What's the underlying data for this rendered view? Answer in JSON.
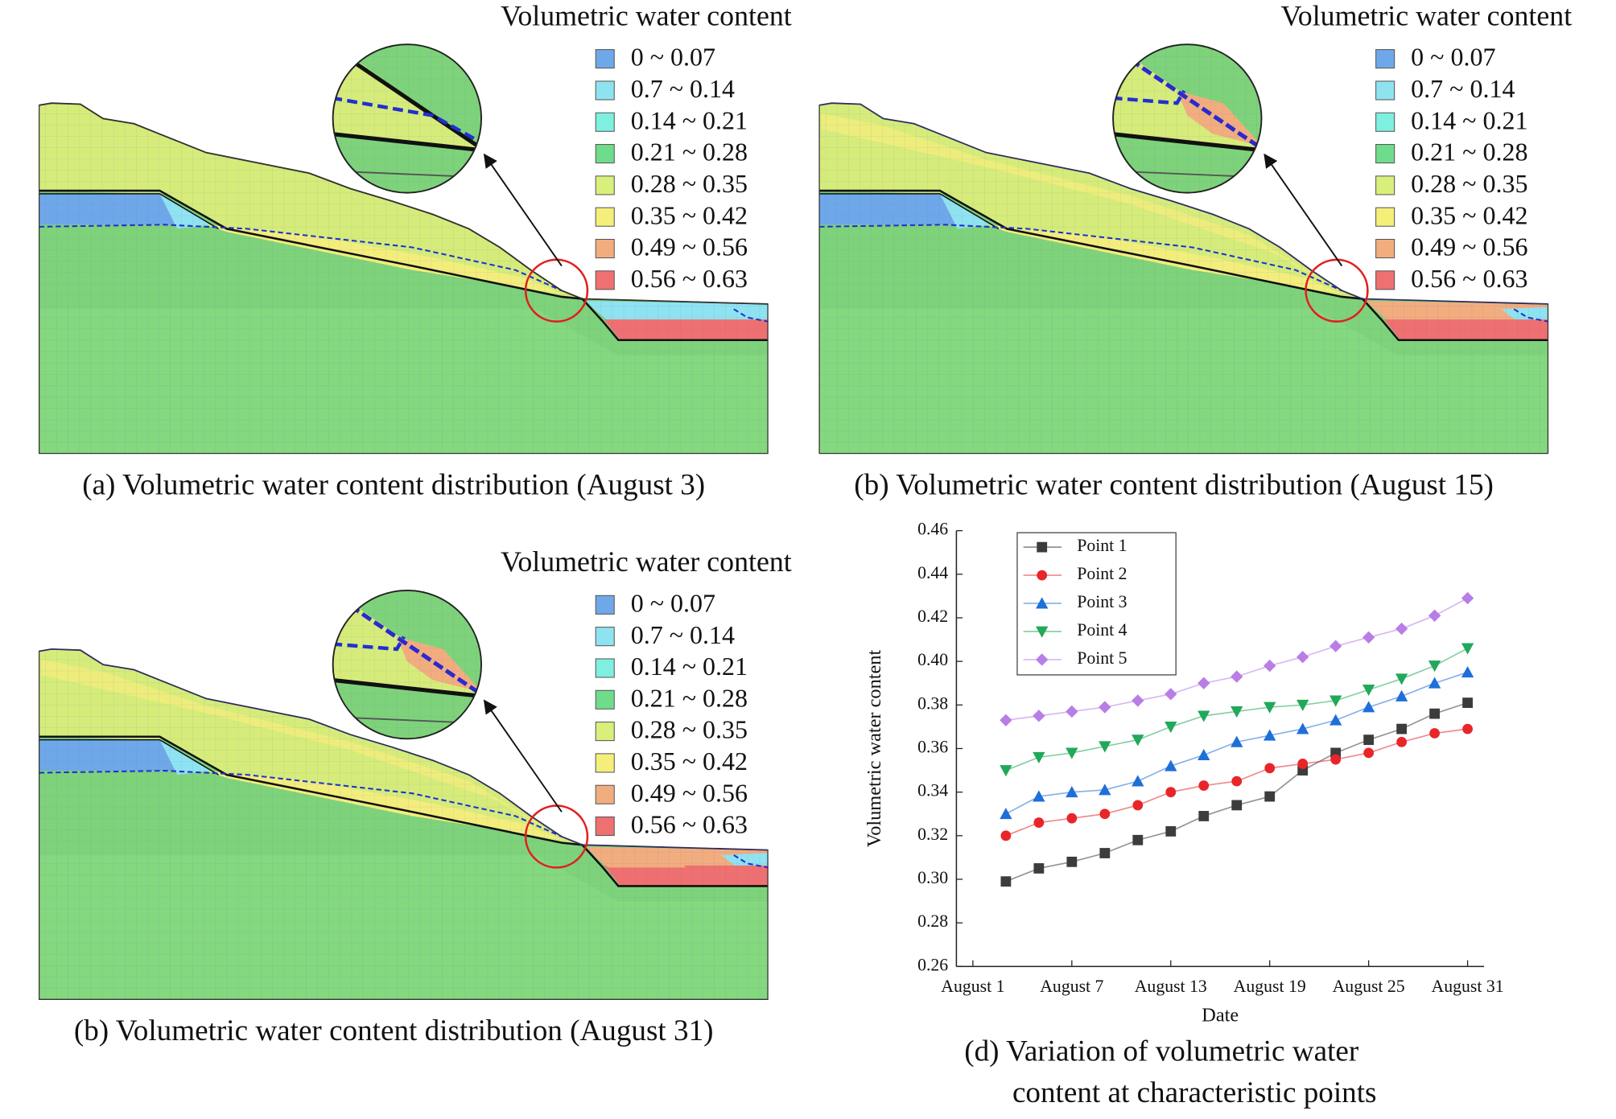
{
  "legend": {
    "title": "Volumetric water content",
    "items": [
      {
        "label": "0 ~ 0.07",
        "color": "#6fa8e8"
      },
      {
        "label": "0.7 ~ 0.14",
        "color": "#8fe3f0"
      },
      {
        "label": "0.14 ~ 0.21",
        "color": "#7fefe0"
      },
      {
        "label": "0.21 ~ 0.28",
        "color": "#6fdc8c"
      },
      {
        "label": "0.28 ~ 0.35",
        "color": "#d8ef7c"
      },
      {
        "label": "0.35 ~ 0.42",
        "color": "#f5ef7a"
      },
      {
        "label": "0.49 ~ 0.56",
        "color": "#f2ad7e"
      },
      {
        "label": "0.56 ~ 0.63",
        "color": "#ef7070"
      }
    ]
  },
  "panels": [
    {
      "caption": "(a) Volumetric water content distribution (August 3)"
    },
    {
      "caption": "(b) Volumetric water content distribution (August 15)"
    },
    {
      "caption": "(b) Volumetric water content distribution (August 31)"
    }
  ],
  "chart_data": {
    "type": "line",
    "caption": [
      "(d) Variation of volumetric water",
      "content at characteristic points"
    ],
    "x_label": "Date",
    "y_label": "Volumetric water content",
    "x": [
      3,
      5,
      7,
      9,
      11,
      13,
      15,
      17,
      19,
      21,
      23,
      25,
      27,
      29,
      31
    ],
    "xlim": [
      0,
      32
    ],
    "xticks": [
      {
        "value": 1,
        "label": "August 1"
      },
      {
        "value": 7,
        "label": "August 7"
      },
      {
        "value": 13,
        "label": "August 13"
      },
      {
        "value": 19,
        "label": "August 19"
      },
      {
        "value": 25,
        "label": "August 25"
      },
      {
        "value": 31,
        "label": "August 31"
      }
    ],
    "ylim": [
      0.26,
      0.46
    ],
    "yticks": [
      0.26,
      0.28,
      {
        "value": 0.3,
        "label": "0.30"
      },
      0.32,
      0.34,
      0.36,
      0.38,
      {
        "value": 0.4,
        "label": "0.40"
      },
      0.42,
      0.44,
      0.46
    ],
    "series": [
      {
        "name": "Point 1",
        "color": "#3c3c3c",
        "marker": "square",
        "values": [
          0.299,
          0.305,
          0.308,
          0.312,
          0.318,
          0.322,
          0.329,
          0.334,
          0.338,
          0.35,
          0.358,
          0.364,
          0.369,
          0.376,
          0.381
        ]
      },
      {
        "name": "Point 2",
        "color": "#e8262a",
        "marker": "circle",
        "values": [
          0.32,
          0.326,
          0.328,
          0.33,
          0.334,
          0.34,
          0.343,
          0.345,
          0.351,
          0.353,
          0.355,
          0.358,
          0.363,
          0.367,
          0.369
        ]
      },
      {
        "name": "Point 3",
        "color": "#1f6fd8",
        "marker": "triangle-up",
        "values": [
          0.33,
          0.338,
          0.34,
          0.341,
          0.345,
          0.352,
          0.357,
          0.363,
          0.366,
          0.369,
          0.373,
          0.379,
          0.384,
          0.39,
          0.395
        ]
      },
      {
        "name": "Point 4",
        "color": "#22a85a",
        "marker": "triangle-down",
        "values": [
          0.35,
          0.356,
          0.358,
          0.361,
          0.364,
          0.37,
          0.375,
          0.377,
          0.379,
          0.38,
          0.382,
          0.387,
          0.392,
          0.398,
          0.406
        ]
      },
      {
        "name": "Point 5",
        "color": "#b87ee6",
        "marker": "diamond",
        "values": [
          0.373,
          0.375,
          0.377,
          0.379,
          0.382,
          0.385,
          0.39,
          0.393,
          0.398,
          0.402,
          0.407,
          0.411,
          0.415,
          0.421,
          0.429
        ]
      }
    ]
  }
}
